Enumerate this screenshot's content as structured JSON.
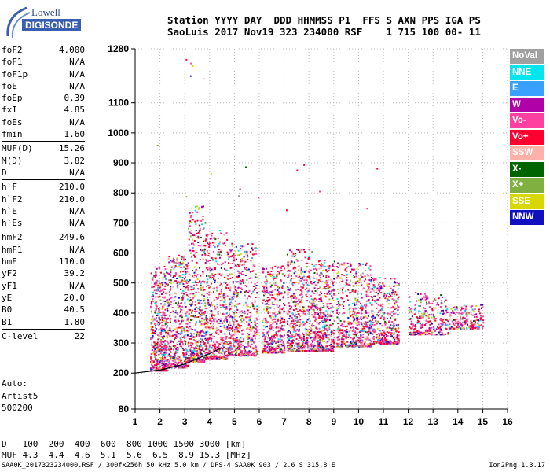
{
  "logo": {
    "line1": "Lowell",
    "line2": "DIGISONDE"
  },
  "header": {
    "line1": "Station YYYY DAY  DDD HHMMSS P1  FFS S AXN PPS IGA PS",
    "line2": "SaoLuis 2017 Nov19 323 234000 RSF    1 715 100 00- 11"
  },
  "params": [
    {
      "k": "foF2",
      "v": "4.000"
    },
    {
      "k": "foF1",
      "v": "N/A"
    },
    {
      "k": "foF1p",
      "v": "N/A"
    },
    {
      "k": "foE",
      "v": "N/A"
    },
    {
      "k": "foEp",
      "v": "0.39"
    },
    {
      "k": "fxI",
      "v": "4.85"
    },
    {
      "k": "foEs",
      "v": "N/A"
    },
    {
      "k": "fmin",
      "v": "1.60"
    },
    {
      "k": "MUF(D)",
      "v": "15.26"
    },
    {
      "k": "M(D)",
      "v": "3.82"
    },
    {
      "k": "D",
      "v": "N/A"
    },
    {
      "k": "h`F",
      "v": "210.0"
    },
    {
      "k": "h`F2",
      "v": "210.0"
    },
    {
      "k": "h`E",
      "v": "N/A"
    },
    {
      "k": "h`Es",
      "v": "N/A"
    },
    {
      "k": "hmF2",
      "v": "249.6"
    },
    {
      "k": "hmF1",
      "v": "N/A"
    },
    {
      "k": "hmE",
      "v": "110.0"
    },
    {
      "k": "yF2",
      "v": "39.2"
    },
    {
      "k": "yF1",
      "v": "N/A"
    },
    {
      "k": "yE",
      "v": "20.0"
    },
    {
      "k": "B0",
      "v": "40.5"
    },
    {
      "k": "B1",
      "v": "1.80"
    },
    {
      "k": "C-level",
      "v": "22"
    }
  ],
  "auto": {
    "line1": "Auto:",
    "line2": "Artist5",
    "line3": "500200"
  },
  "legend": [
    {
      "label": "NoVal",
      "color": "#a0a0a0"
    },
    {
      "label": "NNE",
      "color": "#00e5ee"
    },
    {
      "label": "E",
      "color": "#3aa0ff"
    },
    {
      "label": "W",
      "color": "#b000a8"
    },
    {
      "label": "Vo-",
      "color": "#ff40a0"
    },
    {
      "label": "Vo+",
      "color": "#ff0030"
    },
    {
      "label": "SSW",
      "color": "#ffb0a8"
    },
    {
      "label": "X-",
      "color": "#006400"
    },
    {
      "label": "X+",
      "color": "#80b040"
    },
    {
      "label": "SSE",
      "color": "#d8d800"
    },
    {
      "label": "NNW",
      "color": "#1010c0"
    }
  ],
  "muf_table": {
    "d_label": "D",
    "d_values": "100  200  400  600  800 1000 1500 3000 [km]",
    "m_label": "MUF",
    "m_values": "4.3  4.4  4.6  5.1  5.6  6.5  8.9 15.3 [MHz]"
  },
  "footer": {
    "left": "SAA0K_2017323234000.RSF / 300fx256h 50 kHz 5.0 km / DPS-4 SAA0K 903 / 2.6 S 315.8 E",
    "right": "Ion2Png 1.3.17"
  },
  "chart_data": {
    "type": "scatter",
    "xlim": [
      1,
      16
    ],
    "ylim": [
      80,
      1280
    ],
    "x_ticks": [
      "1",
      "2",
      "3",
      "4",
      "5",
      "6",
      "7",
      "8",
      "9",
      "10",
      "11",
      "12",
      "13",
      "14",
      "15",
      "16"
    ],
    "y_ticks": [
      "80",
      "200",
      "300",
      "400",
      "500",
      "600",
      "700",
      "800",
      "900",
      "1000",
      "1100",
      "1280"
    ],
    "y_tick_values": [
      80,
      200,
      300,
      400,
      500,
      600,
      700,
      800,
      900,
      1000,
      1100,
      1280
    ],
    "grid": true,
    "trace": [
      [
        1.0,
        200
      ],
      [
        2.0,
        210
      ],
      [
        3.0,
        230
      ],
      [
        4.0,
        265
      ],
      [
        4.5,
        285
      ]
    ],
    "clusters": [
      {
        "xmin": 1.6,
        "xmax": 2.3,
        "ymin": 210,
        "ymax": 560,
        "n": 500
      },
      {
        "xmin": 2.3,
        "xmax": 3.1,
        "ymin": 220,
        "ymax": 600,
        "n": 450
      },
      {
        "xmin": 3.1,
        "xmax": 3.8,
        "ymin": 240,
        "ymax": 760,
        "n": 450
      },
      {
        "xmin": 3.8,
        "xmax": 4.7,
        "ymin": 250,
        "ymax": 680,
        "n": 450
      },
      {
        "xmin": 4.7,
        "xmax": 5.9,
        "ymin": 260,
        "ymax": 640,
        "n": 550
      },
      {
        "xmin": 6.1,
        "xmax": 7.0,
        "ymin": 270,
        "ymax": 560,
        "n": 420
      },
      {
        "xmin": 7.1,
        "xmax": 8.2,
        "ymin": 275,
        "ymax": 620,
        "n": 520
      },
      {
        "xmin": 8.2,
        "xmax": 9.0,
        "ymin": 275,
        "ymax": 580,
        "n": 420
      },
      {
        "xmin": 9.1,
        "xmax": 10.5,
        "ymin": 290,
        "ymax": 570,
        "n": 520
      },
      {
        "xmin": 10.5,
        "xmax": 11.6,
        "ymin": 300,
        "ymax": 520,
        "n": 400
      },
      {
        "xmin": 12.0,
        "xmax": 13.6,
        "ymin": 330,
        "ymax": 470,
        "n": 260
      },
      {
        "xmin": 13.6,
        "xmax": 15.0,
        "ymin": 350,
        "ymax": 430,
        "n": 200
      }
    ]
  }
}
